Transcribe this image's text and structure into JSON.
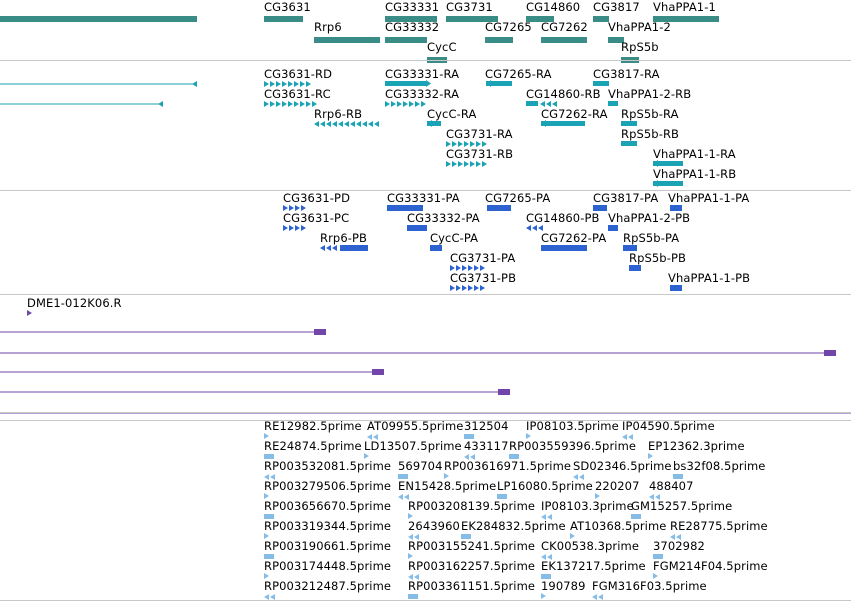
{
  "colors": {
    "gene": "#3a8c86",
    "transcript": "#1aa3b5",
    "protein": "#2c63d0",
    "clone": "#7246a8",
    "est": "#86bde6",
    "divider": "#c8c8c8",
    "track_end_line": "#7246a8"
  },
  "tracks": [
    {
      "name": "genes",
      "labels": [
        {
          "text": "CG3631"
        },
        {
          "text": "CG33331"
        },
        {
          "text": "CG3731"
        },
        {
          "text": "CG14860"
        },
        {
          "text": "CG3817"
        },
        {
          "text": "VhaPPA1-1"
        },
        {
          "text": "Rrp6"
        },
        {
          "text": "CG33332"
        },
        {
          "text": "CG7265"
        },
        {
          "text": "CG7262"
        },
        {
          "text": "VhaPPA1-2"
        },
        {
          "text": "CycC"
        },
        {
          "text": "RpS5b"
        }
      ]
    },
    {
      "name": "transcripts",
      "labels": [
        {
          "text": "CG3631-RD"
        },
        {
          "text": "CG33331-RA"
        },
        {
          "text": "CG7265-RA"
        },
        {
          "text": "CG3817-RA"
        },
        {
          "text": "CG3631-RC"
        },
        {
          "text": "CG33332-RA"
        },
        {
          "text": "CG14860-RB"
        },
        {
          "text": "VhaPPA1-2-RB"
        },
        {
          "text": "Rrp6-RB"
        },
        {
          "text": "CycC-RA"
        },
        {
          "text": "CG7262-RA"
        },
        {
          "text": "RpS5b-RA"
        },
        {
          "text": "CG3731-RA"
        },
        {
          "text": "RpS5b-RB"
        },
        {
          "text": "CG3731-RB"
        },
        {
          "text": "VhaPPA1-1-RA"
        },
        {
          "text": "VhaPPA1-1-RB"
        }
      ]
    },
    {
      "name": "proteins",
      "labels": [
        {
          "text": "CG3631-PD"
        },
        {
          "text": "CG33331-PA"
        },
        {
          "text": "CG7265-PA"
        },
        {
          "text": "CG3817-PA"
        },
        {
          "text": "VhaPPA1-1-PA"
        },
        {
          "text": "CG3631-PC"
        },
        {
          "text": "CG33332-PA"
        },
        {
          "text": "CG14860-PB"
        },
        {
          "text": "VhaPPA1-2-PB"
        },
        {
          "text": "Rrp6-PB"
        },
        {
          "text": "CycC-PA"
        },
        {
          "text": "CG7262-PA"
        },
        {
          "text": "RpS5b-PA"
        },
        {
          "text": "CG3731-PA"
        },
        {
          "text": "RpS5b-PB"
        },
        {
          "text": "CG3731-PB"
        },
        {
          "text": "VhaPPA1-1-PB"
        }
      ]
    },
    {
      "name": "clones",
      "labels": [
        {
          "text": "DME1-012K06.R"
        }
      ]
    },
    {
      "name": "ests",
      "labels": [
        {
          "text": "RE12982.5prime"
        },
        {
          "text": "AT09955.5prime"
        },
        {
          "text": "312504"
        },
        {
          "text": "IP08103.5prime"
        },
        {
          "text": "IP04590.5prime"
        },
        {
          "text": "RE24874.5prime"
        },
        {
          "text": "LD13507.5prime"
        },
        {
          "text": "433117"
        },
        {
          "text": "RP003559396.5prime"
        },
        {
          "text": "EP12362.3prime"
        },
        {
          "text": "RP003532081.5prime"
        },
        {
          "text": "569704"
        },
        {
          "text": "RP003616971.5prime"
        },
        {
          "text": "SD02346.5prime"
        },
        {
          "text": "bs32f08.5prime"
        },
        {
          "text": "RP003279506.5prime"
        },
        {
          "text": "EN15428.5prime"
        },
        {
          "text": "LP16080.5prime"
        },
        {
          "text": "220207"
        },
        {
          "text": "488407"
        },
        {
          "text": "RP003656670.5prime"
        },
        {
          "text": "RP003208139.5prime"
        },
        {
          "text": "IP08103.3prime"
        },
        {
          "text": "GM15257.5prime"
        },
        {
          "text": "RP003319344.5prime"
        },
        {
          "text": "2643960"
        },
        {
          "text": "EK284832.5prime"
        },
        {
          "text": "AT10368.5prime"
        },
        {
          "text": "RE28775.5prime"
        },
        {
          "text": "RP003190661.5prime"
        },
        {
          "text": "RP003155241.5prime"
        },
        {
          "text": "CK00538.3prime"
        },
        {
          "text": "3702982"
        },
        {
          "text": "RP003174448.5prime"
        },
        {
          "text": "RP003162257.5prime"
        },
        {
          "text": "EK137217.5prime"
        },
        {
          "text": "FGM214F04.5prime"
        },
        {
          "text": "RP003212487.5prime"
        },
        {
          "text": "RP003361151.5prime"
        },
        {
          "text": "190789"
        },
        {
          "text": "FGM316F03.5prime"
        }
      ]
    }
  ]
}
